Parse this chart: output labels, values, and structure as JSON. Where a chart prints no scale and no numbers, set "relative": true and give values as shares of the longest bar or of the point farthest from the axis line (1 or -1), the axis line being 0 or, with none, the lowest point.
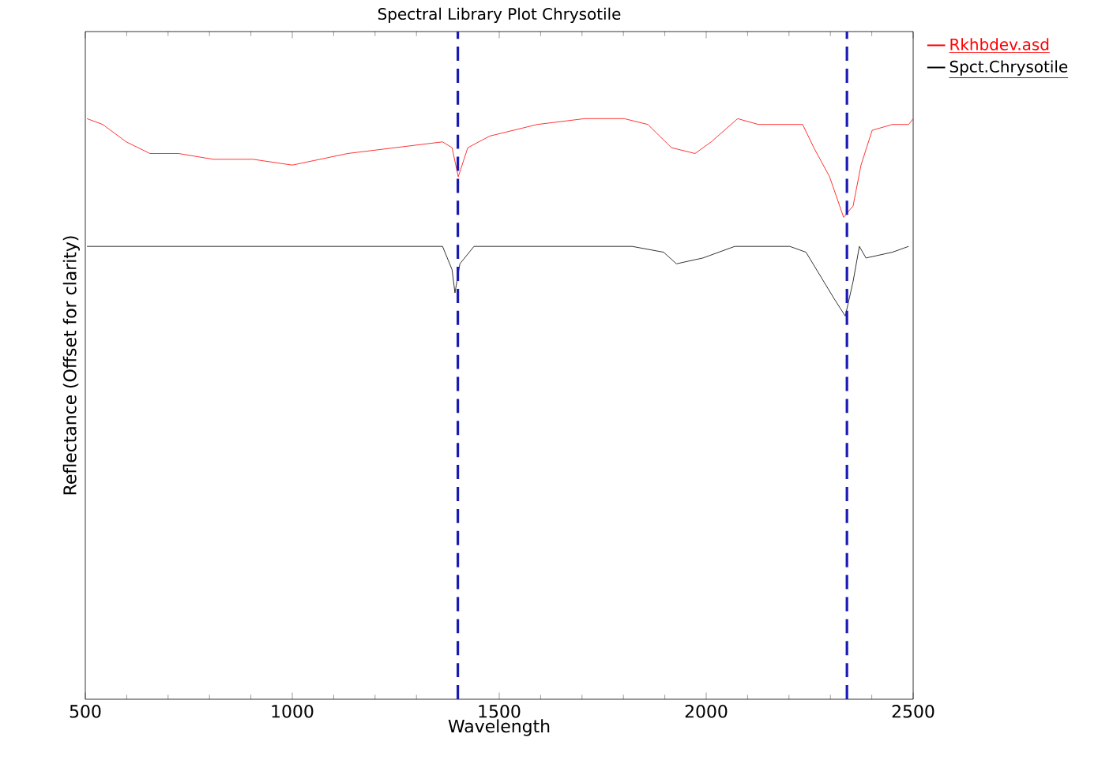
{
  "chart_data": {
    "type": "line",
    "title": "Spectral Library Plot Chrysotile",
    "xlabel": "Wavelength",
    "ylabel": "Reflectance (Offset for clarity)",
    "relative": true,
    "xlim": [
      500,
      2500
    ],
    "xticks": [
      500,
      1000,
      1500,
      2000,
      2500
    ],
    "grid": false,
    "legend": "top right",
    "marker": "none",
    "line_style": "solid",
    "series": [
      {
        "name": "Rkhbdev.asd",
        "color": "#ff0000",
        "x": [
          504,
          542,
          599,
          656,
          725,
          809,
          905,
          1000,
          1134,
          1363,
          1386,
          1401,
          1424,
          1477,
          1592,
          1706,
          1802,
          1859,
          1916,
          1973,
          2012,
          2076,
          2126,
          2202,
          2233,
          2260,
          2298,
          2332,
          2355,
          2374,
          2401,
          2450,
          2489,
          2500
        ],
        "values": [
          1.0,
          0.99,
          0.96,
          0.94,
          0.94,
          0.93,
          0.93,
          0.92,
          0.94,
          0.96,
          0.95,
          0.9,
          0.95,
          0.97,
          0.99,
          1.0,
          1.0,
          0.99,
          0.95,
          0.94,
          0.96,
          1.0,
          0.99,
          0.99,
          0.99,
          0.95,
          0.9,
          0.83,
          0.85,
          0.92,
          0.98,
          0.99,
          0.99,
          1.0
        ]
      },
      {
        "name": "Spct.Chrysotile",
        "color": "#000000",
        "x": [
          504,
          866,
          1363,
          1386,
          1393,
          1405,
          1439,
          1821,
          1897,
          1928,
          1992,
          2069,
          2202,
          2241,
          2309,
          2336,
          2355,
          2370,
          2386,
          2450,
          2489
        ],
        "values": [
          0.78,
          0.78,
          0.78,
          0.74,
          0.7,
          0.75,
          0.78,
          0.78,
          0.77,
          0.75,
          0.76,
          0.78,
          0.78,
          0.77,
          0.69,
          0.66,
          0.72,
          0.78,
          0.76,
          0.77,
          0.78
        ]
      }
    ],
    "ref_lines": [
      {
        "axis": "x",
        "value": 1400,
        "color": "#1a1ab4",
        "line_style": "dashed"
      },
      {
        "axis": "x",
        "value": 2340,
        "color": "#1a1ab4",
        "line_style": "dashed"
      }
    ]
  }
}
